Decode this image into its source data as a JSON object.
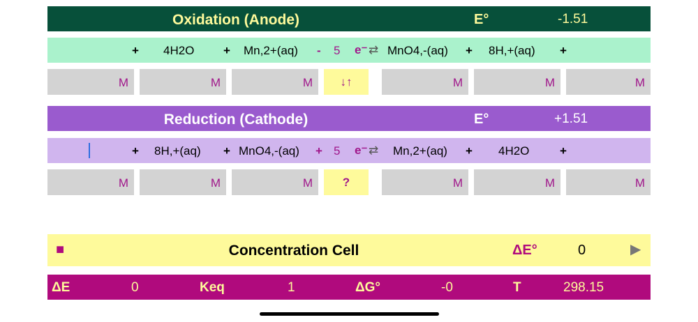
{
  "oxidation": {
    "title": "Oxidation (Anode)",
    "e_label": "E°",
    "e_value": "-1.51",
    "equation": {
      "plus1": "+",
      "species1": "4H2O",
      "plus2": "+",
      "species2": "Mn,2+(aq)",
      "sign": "-",
      "electrons": "5",
      "e_symbol": "e⁻",
      "arrow": "⇄",
      "species3": "MnO4,-(aq)",
      "plus3": "+",
      "species4": "8H,+(aq)",
      "plus4": "+"
    },
    "conc_unit": "M",
    "direction_button": "↓↑"
  },
  "reduction": {
    "title": "Reduction (Cathode)",
    "e_label": "E°",
    "e_value": "+1.51",
    "equation": {
      "plus1": "+",
      "species1": "8H,+(aq)",
      "plus2": "+",
      "species2": "MnO4,-(aq)",
      "sign": "+",
      "electrons": "5",
      "e_symbol": "e⁻",
      "arrow": "⇄",
      "species3": "Mn,2+(aq)",
      "plus3": "+",
      "species4": "4H2O",
      "plus4": "+"
    },
    "conc_unit": "M",
    "query_button": "?"
  },
  "cell": {
    "stop_icon": "■",
    "title": "Concentration Cell",
    "delta_e_label": "ΔE°",
    "delta_e_value": "0",
    "play_icon": "▶"
  },
  "stats": {
    "delta_e_label": "ΔE",
    "delta_e_value": "0",
    "keq_label": "Keq",
    "keq_value": "1",
    "delta_g_label": "ΔG°",
    "delta_g_value": "-0",
    "t_label": "T",
    "t_value": "298.15"
  },
  "colors": {
    "oxidation_header": "#07503a",
    "oxidation_equation": "#aaf2cc",
    "reduction_header": "#9a5bce",
    "reduction_equation": "#d0b5ee",
    "concentration_box": "#d3d3d3",
    "accent_magenta": "#a0178b",
    "title_yellow": "#fefa9b",
    "stats_bar": "#b00a7d"
  }
}
